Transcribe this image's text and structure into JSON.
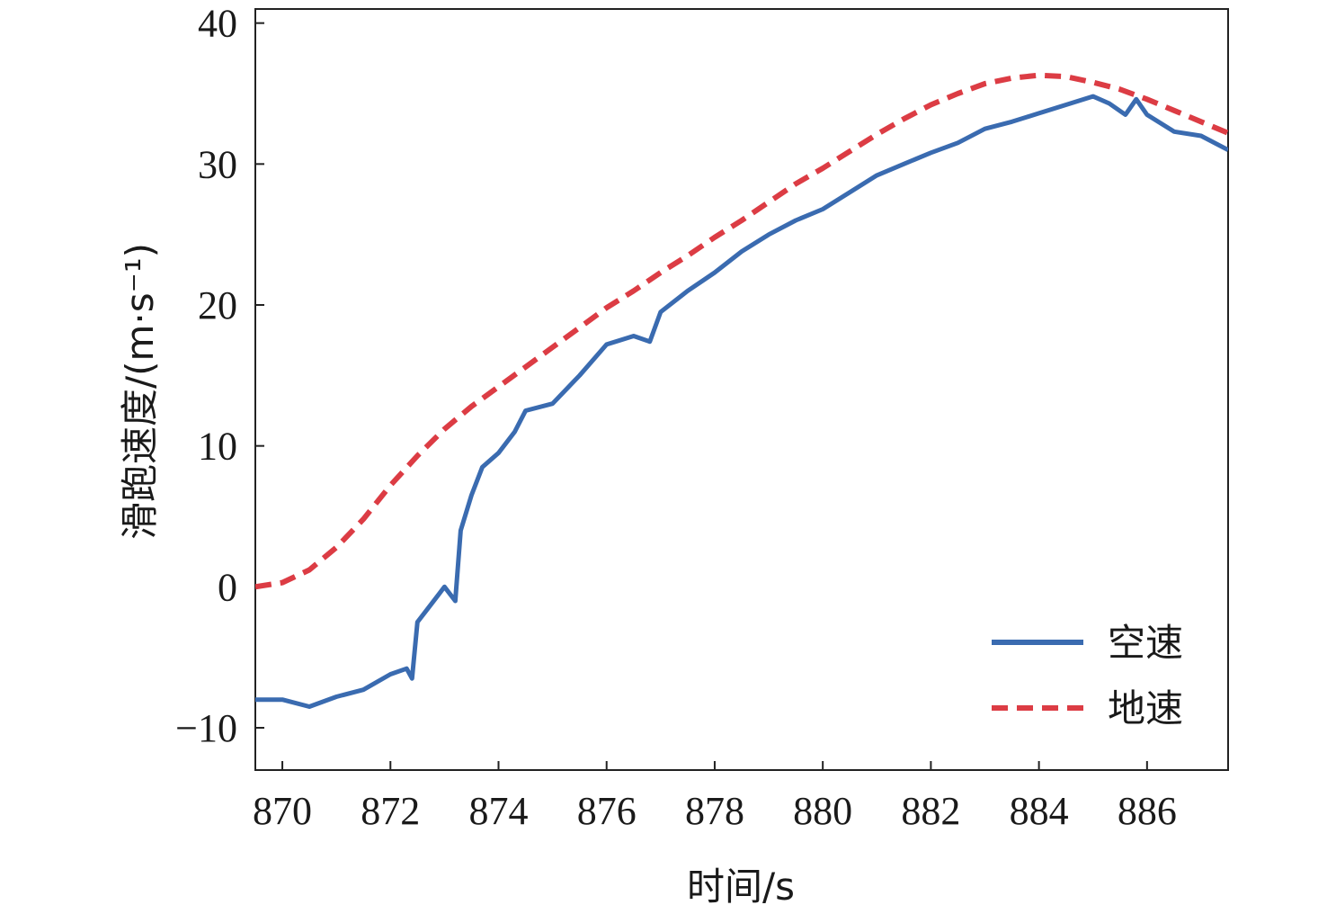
{
  "chart_data": {
    "type": "line",
    "xlabel": "时间/s",
    "ylabel": "滑跑速度/(m·s⁻¹)",
    "xlim": [
      869.5,
      887.5
    ],
    "ylim": [
      -13,
      41
    ],
    "x_ticks": [
      "870",
      "872",
      "874",
      "876",
      "878",
      "880",
      "882",
      "884",
      "886"
    ],
    "y_ticks": [
      "−10",
      "0",
      "10",
      "20",
      "30",
      "40"
    ],
    "grid": false,
    "legend_position": "bottom-right",
    "series": [
      {
        "name": "空速",
        "style": "solid",
        "color": "#3a6bb0",
        "x": [
          869.5,
          870.0,
          870.5,
          871.0,
          871.5,
          872.0,
          872.3,
          872.4,
          872.5,
          872.7,
          872.9,
          873.0,
          873.2,
          873.3,
          873.5,
          873.7,
          874.0,
          874.3,
          874.5,
          875.0,
          875.5,
          876.0,
          876.5,
          876.8,
          877.0,
          877.5,
          878.0,
          878.5,
          879.0,
          879.5,
          880.0,
          880.5,
          881.0,
          881.5,
          882.0,
          882.5,
          883.0,
          883.5,
          884.0,
          884.5,
          885.0,
          885.3,
          885.6,
          885.8,
          886.0,
          886.5,
          887.0,
          887.5
        ],
        "y": [
          -8.0,
          -8.0,
          -8.5,
          -7.8,
          -7.3,
          -6.2,
          -5.8,
          -6.5,
          -2.5,
          -1.5,
          -0.5,
          0.0,
          -1.0,
          4.0,
          6.5,
          8.5,
          9.5,
          11.0,
          12.5,
          13.0,
          15.0,
          17.2,
          17.8,
          17.4,
          19.5,
          21.0,
          22.3,
          23.8,
          25.0,
          26.0,
          26.8,
          28.0,
          29.2,
          30.0,
          30.8,
          31.5,
          32.5,
          33.0,
          33.6,
          34.2,
          34.8,
          34.3,
          33.5,
          34.6,
          33.5,
          32.3,
          32.0,
          31.0
        ]
      },
      {
        "name": "地速",
        "style": "dashed",
        "color": "#dc3c44",
        "x": [
          869.5,
          870.0,
          870.5,
          871.0,
          871.5,
          872.0,
          872.5,
          873.0,
          873.5,
          874.0,
          874.5,
          875.0,
          875.5,
          876.0,
          876.5,
          877.0,
          877.5,
          878.0,
          878.5,
          879.0,
          879.5,
          880.0,
          880.5,
          881.0,
          881.5,
          882.0,
          882.5,
          883.0,
          883.5,
          884.0,
          884.5,
          885.0,
          885.5,
          886.0,
          886.5,
          887.0,
          887.5
        ],
        "y": [
          0.0,
          0.3,
          1.2,
          2.8,
          4.8,
          7.2,
          9.3,
          11.2,
          12.8,
          14.2,
          15.6,
          17.0,
          18.4,
          19.8,
          21.0,
          22.3,
          23.5,
          24.8,
          26.0,
          27.3,
          28.6,
          29.7,
          30.9,
          32.1,
          33.2,
          34.2,
          35.0,
          35.7,
          36.1,
          36.3,
          36.2,
          35.8,
          35.3,
          34.6,
          33.8,
          33.0,
          32.2
        ]
      }
    ]
  }
}
